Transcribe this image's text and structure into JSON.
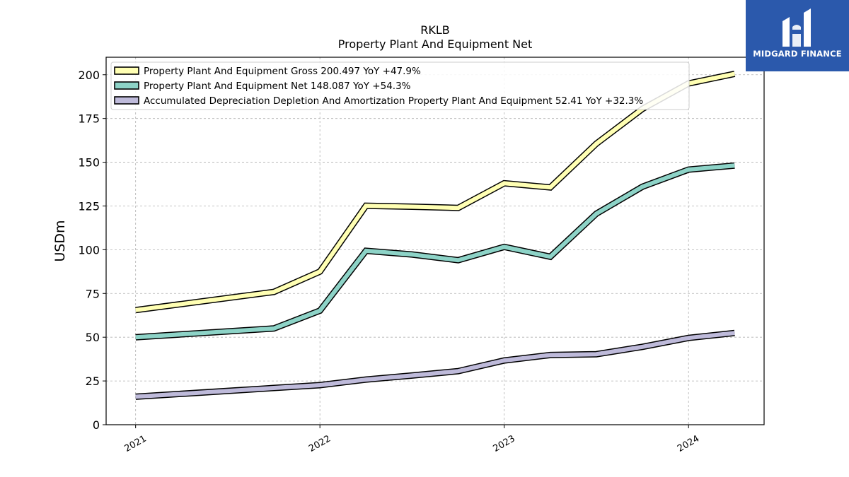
{
  "brand": {
    "name": "MIDGARD FINANCE",
    "color": "#2b59ac"
  },
  "chart_data": {
    "type": "line",
    "title": "RKLB",
    "subtitle": "Property Plant And Equipment Net",
    "xlabel": "",
    "ylabel": "USDm",
    "ylim": [
      0,
      210
    ],
    "yticks": [
      0,
      25,
      50,
      75,
      100,
      125,
      150,
      175,
      200
    ],
    "xlim": [
      2020.84,
      2024.41
    ],
    "xticks": [
      {
        "value": 2021,
        "label": "2021"
      },
      {
        "value": 2022,
        "label": "2022"
      },
      {
        "value": 2023,
        "label": "2023"
      },
      {
        "value": 2024,
        "label": "2024"
      }
    ],
    "grid": true,
    "legend_position": "top-left",
    "x": [
      2021.0,
      2021.75,
      2022.0,
      2022.25,
      2022.5,
      2022.75,
      2023.0,
      2023.25,
      2023.5,
      2023.75,
      2024.0,
      2024.25
    ],
    "series": [
      {
        "name": "Property Plant And Equipment Gross",
        "legend": "Property Plant And Equipment Gross  200.497 YoY +47.9%",
        "color": "#ffffb3",
        "values": [
          65.5,
          75.9,
          87.5,
          125.1,
          124.6,
          123.9,
          138.0,
          135.6,
          160.6,
          180.5,
          195.0,
          200.5
        ]
      },
      {
        "name": "Property Plant And Equipment Net",
        "legend": "Property Plant And Equipment Net  148.087 YoY +54.3%",
        "color": "#8dd3c7",
        "values": [
          50.0,
          55.0,
          65.2,
          99.4,
          97.3,
          94.0,
          101.6,
          96.0,
          120.6,
          136.0,
          145.8,
          148.1
        ]
      },
      {
        "name": "Accumulated Depreciation Depletion And Amortization Property Plant And Equipment",
        "legend": "Accumulated Depreciation Depletion And Amortization Property Plant And Equipment  52.41 YoY +32.3%",
        "color": "#bebada",
        "values": [
          16.0,
          21.0,
          22.6,
          25.8,
          28.1,
          30.6,
          36.7,
          39.8,
          40.3,
          44.5,
          49.6,
          52.4
        ]
      }
    ]
  }
}
